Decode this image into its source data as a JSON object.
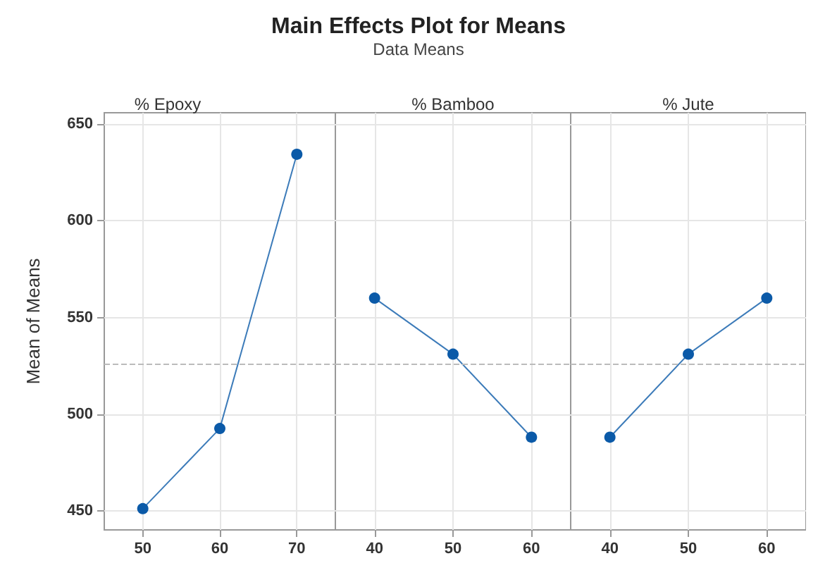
{
  "chart_data": [
    {
      "type": "other",
      "title": "Main Effects Plot for Means",
      "subtitle": "Data Means"
    },
    {
      "type": "line",
      "title": "% Epoxy",
      "ylabel": "Mean of Means",
      "x": [
        50,
        60,
        70
      ],
      "values": [
        451,
        492.5,
        634.5
      ],
      "color": "#0b5aa8",
      "xlim": [
        45,
        75
      ],
      "xticks": [
        50,
        60,
        70
      ],
      "ylim": [
        440,
        656
      ],
      "yticks": [
        450,
        500,
        550,
        600,
        650
      ],
      "grid": true,
      "marker": "circle",
      "line_style": "solid",
      "ref_lines": [
        {
          "axis": "y",
          "value": 526,
          "color": "#bbbbbb",
          "line_style": "dashed"
        }
      ]
    },
    {
      "type": "line",
      "title": "% Bamboo",
      "x": [
        40,
        50,
        60
      ],
      "values": [
        560,
        531,
        488
      ],
      "color": "#0b5aa8",
      "xlim": [
        35,
        65
      ],
      "xticks": [
        40,
        50,
        60
      ],
      "ylim": [
        440,
        656
      ],
      "yticks": [
        450,
        500,
        550,
        600,
        650
      ],
      "grid": true,
      "marker": "circle",
      "line_style": "solid",
      "tick_labels": "x",
      "ref_lines": [
        {
          "axis": "y",
          "value": 526,
          "color": "#bbbbbb",
          "line_style": "dashed"
        }
      ]
    },
    {
      "type": "line",
      "title": "% Jute",
      "x": [
        40,
        50,
        60
      ],
      "values": [
        488,
        531,
        560
      ],
      "color": "#0b5aa8",
      "xlim": [
        35,
        65
      ],
      "xticks": [
        40,
        50,
        60
      ],
      "ylim": [
        440,
        656
      ],
      "yticks": [
        450,
        500,
        550,
        600,
        650
      ],
      "grid": true,
      "marker": "circle",
      "line_style": "solid",
      "tick_labels": "x",
      "ref_lines": [
        {
          "axis": "y",
          "value": 526,
          "color": "#bbbbbb",
          "line_style": "dashed"
        }
      ]
    }
  ]
}
